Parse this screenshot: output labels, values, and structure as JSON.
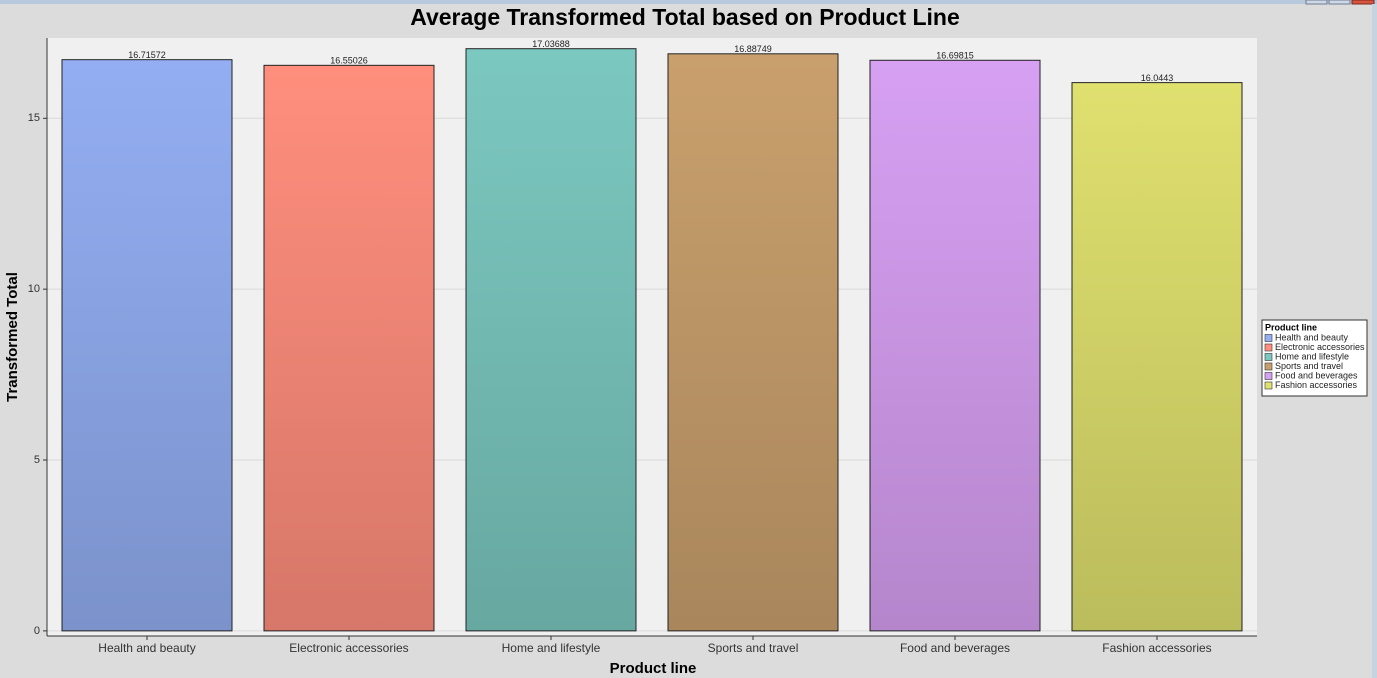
{
  "chart_data": {
    "type": "bar",
    "title": "Average Transformed Total based on Product Line",
    "x_label": "Product line",
    "y_label": "Transformed Total",
    "categories": [
      "Health and beauty",
      "Electronic accessories",
      "Home and lifestyle",
      "Sports and travel",
      "Food and beverages",
      "Fashion accessories"
    ],
    "values": [
      16.71572,
      16.55026,
      17.03688,
      16.88749,
      16.69815,
      16.0443
    ],
    "colors": [
      "#93aef2",
      "#ff8e7d",
      "#7bc8c0",
      "#c9a06d",
      "#d7a0f3",
      "#dfe06e"
    ],
    "ylim": [
      -0.15,
      17.35
    ],
    "yticks": [
      0,
      5,
      10,
      15
    ],
    "grid": true,
    "legend": {
      "title": "Product line",
      "position": "right"
    }
  }
}
